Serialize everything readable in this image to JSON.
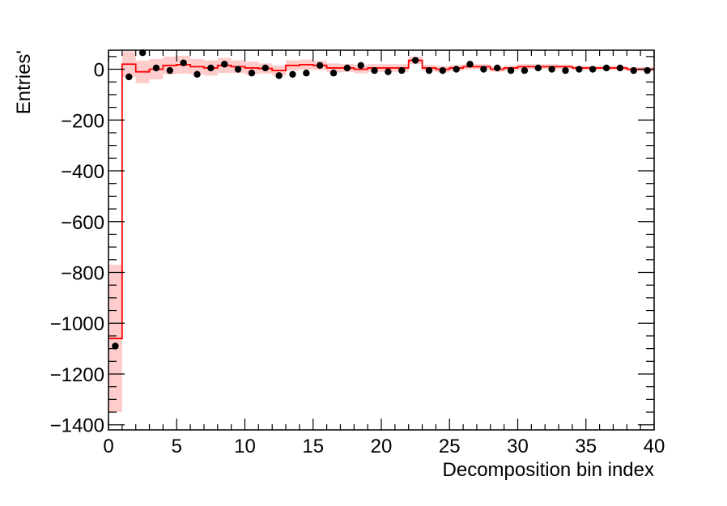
{
  "chart_data": {
    "type": "line",
    "xlabel": "Decomposition bin index",
    "ylabel": "Entries'",
    "xlim": [
      0,
      40
    ],
    "ylim": [
      -1420,
      75
    ],
    "x_ticks": [
      0,
      5,
      10,
      15,
      20,
      25,
      30,
      35,
      40
    ],
    "x_tick_labels": [
      "0",
      "5",
      "10",
      "15",
      "20",
      "25",
      "30",
      "35",
      "40"
    ],
    "y_ticks": [
      0,
      -200,
      -400,
      -600,
      -800,
      -1000,
      -1200,
      -1400
    ],
    "y_tick_labels": [
      "0",
      "−200",
      "−400",
      "−600",
      "−800",
      "−1000",
      "−1200",
      "−1400"
    ],
    "grid": false,
    "legend": "none",
    "colors": {
      "histogram_line": "#ff0000",
      "uncertainty_band": "#ffcccc",
      "points": "#000000"
    },
    "series": [
      {
        "kind": "step-histogram-with-band",
        "bin_edges": [
          0,
          1,
          2,
          3,
          4,
          5,
          6,
          7,
          8,
          9,
          10,
          11,
          12,
          13,
          14,
          15,
          16,
          17,
          18,
          19,
          20,
          21,
          22,
          23,
          24,
          25,
          26,
          27,
          28,
          29,
          30,
          31,
          32,
          33,
          34,
          35,
          36,
          37,
          38,
          39,
          40
        ],
        "values": [
          -1060,
          20,
          -10,
          0,
          15,
          18,
          10,
          5,
          15,
          10,
          5,
          3,
          -5,
          15,
          18,
          15,
          5,
          5,
          0,
          5,
          5,
          5,
          35,
          5,
          0,
          5,
          10,
          10,
          0,
          5,
          10,
          10,
          10,
          10,
          5,
          5,
          5,
          5,
          0,
          0
        ],
        "errors": [
          290,
          50,
          45,
          40,
          35,
          35,
          30,
          30,
          30,
          25,
          25,
          20,
          20,
          20,
          20,
          18,
          18,
          16,
          16,
          15,
          15,
          15,
          15,
          12,
          12,
          12,
          10,
          10,
          10,
          10,
          10,
          10,
          10,
          8,
          8,
          8,
          8,
          8,
          8,
          8
        ]
      },
      {
        "kind": "points",
        "x": [
          0.5,
          1.5,
          2.5,
          3.5,
          4.5,
          5.5,
          6.5,
          7.5,
          8.5,
          9.5,
          10.5,
          11.5,
          12.5,
          13.5,
          14.5,
          15.5,
          16.5,
          17.5,
          18.5,
          19.5,
          20.5,
          21.5,
          22.5,
          23.5,
          24.5,
          25.5,
          26.5,
          27.5,
          28.5,
          29.5,
          30.5,
          31.5,
          32.5,
          33.5,
          34.5,
          35.5,
          36.5,
          37.5,
          38.5,
          39.5
        ],
        "y": [
          -1090,
          -30,
          65,
          5,
          -5,
          25,
          -20,
          5,
          20,
          0,
          -15,
          5,
          -25,
          -20,
          -15,
          15,
          -15,
          5,
          15,
          -5,
          -10,
          -5,
          35,
          -5,
          -5,
          0,
          20,
          0,
          5,
          -5,
          -5,
          5,
          0,
          -5,
          0,
          0,
          5,
          5,
          -5,
          -5
        ]
      }
    ]
  }
}
